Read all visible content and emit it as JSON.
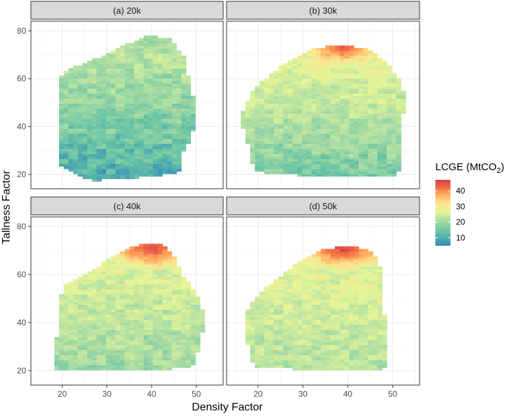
{
  "chart_data": {
    "type": "heatmap",
    "xlabel": "Density Factor",
    "ylabel": "Tallness Factor",
    "xlim": [
      13,
      56
    ],
    "ylim": [
      14,
      84
    ],
    "x_ticks": [
      20,
      30,
      40,
      50
    ],
    "y_ticks": [
      20,
      40,
      60,
      80
    ],
    "legend": {
      "title_main": "LCGE (MtCO",
      "title_sub": "2",
      "title_close": ")",
      "range": [
        5,
        47
      ],
      "ticks": [
        10,
        20,
        30,
        40
      ],
      "colors": [
        "#3288bd",
        "#66c2a5",
        "#abdda4",
        "#e6f598",
        "#fee08b",
        "#fdae61",
        "#f46d43",
        "#d53e4f"
      ],
      "placement": "right"
    },
    "panels": [
      {
        "label": "(a)  20k",
        "region": [
          [
            19,
            28
          ],
          [
            20,
            23
          ],
          [
            25,
            18
          ],
          [
            27,
            17.5
          ],
          [
            33,
            18
          ],
          [
            38,
            19
          ],
          [
            43,
            20
          ],
          [
            46,
            21
          ],
          [
            47,
            24
          ],
          [
            47,
            29
          ],
          [
            49,
            36
          ],
          [
            50,
            44
          ],
          [
            49,
            55
          ],
          [
            48,
            63
          ],
          [
            47,
            70
          ],
          [
            44,
            77
          ],
          [
            39,
            78
          ],
          [
            34,
            74
          ],
          [
            27,
            68
          ],
          [
            20,
            63
          ],
          [
            19,
            55
          ]
        ],
        "base_value": 9,
        "gradient_y_per_unit": 0.2,
        "warm_zone": {
          "center": [
            40,
            77
          ],
          "radius": 9,
          "peak": 14
        }
      },
      {
        "label": "(b)  30k",
        "region": [
          [
            16,
            44
          ],
          [
            18,
            31
          ],
          [
            19,
            22
          ],
          [
            23,
            20
          ],
          [
            35,
            19.5
          ],
          [
            42,
            19.5
          ],
          [
            48,
            19.5
          ],
          [
            51,
            19.5
          ],
          [
            52,
            25
          ],
          [
            52,
            35
          ],
          [
            52,
            42
          ],
          [
            53,
            50
          ],
          [
            52,
            58
          ],
          [
            48,
            68
          ],
          [
            44,
            73
          ],
          [
            37,
            74
          ],
          [
            31,
            72
          ],
          [
            25,
            65
          ],
          [
            19,
            56
          ]
        ],
        "base_value": 13,
        "gradient_y_per_unit": 0.22,
        "warm_zone": {
          "center": [
            39,
            73
          ],
          "radius": 9,
          "peak": 44
        }
      },
      {
        "label": "(c)  40k",
        "region": [
          [
            18,
            21
          ],
          [
            20,
            20.5
          ],
          [
            26,
            20.5
          ],
          [
            33,
            20
          ],
          [
            38,
            20
          ],
          [
            43,
            20.5
          ],
          [
            49,
            21.5
          ],
          [
            50,
            25
          ],
          [
            51,
            33
          ],
          [
            52,
            42
          ],
          [
            50,
            52
          ],
          [
            47,
            60
          ],
          [
            45,
            68
          ],
          [
            42,
            73
          ],
          [
            36,
            72
          ],
          [
            30,
            66
          ],
          [
            25,
            60
          ],
          [
            20,
            55
          ],
          [
            19,
            38
          ]
        ],
        "base_value": 16,
        "gradient_y_per_unit": 0.15,
        "warm_zone": {
          "center": [
            40,
            71
          ],
          "radius": 11,
          "peak": 46
        }
      },
      {
        "label": "(d)  50k",
        "region": [
          [
            17,
            40
          ],
          [
            18,
            28
          ],
          [
            19,
            21.5
          ],
          [
            24,
            21
          ],
          [
            35,
            20.5
          ],
          [
            45,
            20.5
          ],
          [
            48,
            20.5
          ],
          [
            49,
            25
          ],
          [
            49,
            35
          ],
          [
            48,
            45
          ],
          [
            48,
            55
          ],
          [
            47,
            65
          ],
          [
            45,
            70
          ],
          [
            40,
            72
          ],
          [
            34,
            70
          ],
          [
            28,
            64
          ],
          [
            22,
            55
          ],
          [
            18,
            47
          ]
        ],
        "base_value": 18,
        "gradient_y_per_unit": 0.12,
        "warm_zone": {
          "center": [
            39,
            71
          ],
          "radius": 11,
          "peak": 47
        }
      }
    ]
  }
}
